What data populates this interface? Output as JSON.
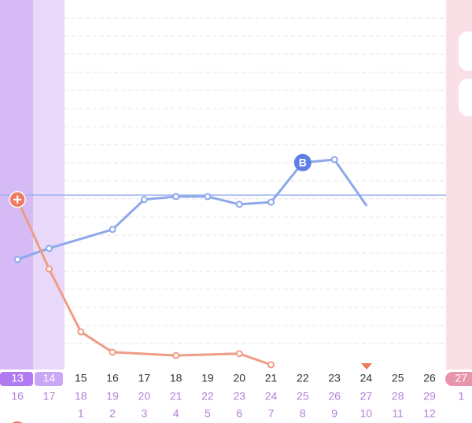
{
  "chart_data": {
    "type": "line",
    "x": [
      13,
      14,
      15,
      16,
      17,
      18,
      19,
      20,
      21,
      22,
      23,
      24,
      25,
      26,
      27
    ],
    "xlim": [
      12.45,
      27.34
    ],
    "ylim": [
      0,
      100
    ],
    "dates": [
      16,
      17,
      18,
      19,
      20,
      21,
      22,
      23,
      24,
      25,
      26,
      27,
      28,
      29,
      1
    ],
    "cycle_days": [
      null,
      null,
      1,
      2,
      3,
      4,
      5,
      6,
      7,
      8,
      9,
      10,
      11,
      12,
      null
    ],
    "coverline": 47.2,
    "series": [
      {
        "name": null,
        "color": "#8fa8ec",
        "x": [
          13,
          14,
          16,
          17,
          18,
          19,
          20,
          21,
          22,
          23,
          24
        ],
        "values": [
          29.8,
          32.8,
          37.9,
          46.0,
          46.8,
          46.8,
          44.7,
          45.3,
          56.0,
          56.8,
          44.5
        ]
      },
      {
        "name": null,
        "color": "#ee9d84",
        "x": [
          13,
          14,
          15,
          16,
          18,
          20,
          21
        ],
        "values": [
          46.0,
          27.2,
          10.2,
          4.7,
          3.8,
          4.3,
          1.3
        ]
      }
    ],
    "annotations": [
      {
        "label": "B",
        "series": 0,
        "point": 8
      }
    ]
  }
}
